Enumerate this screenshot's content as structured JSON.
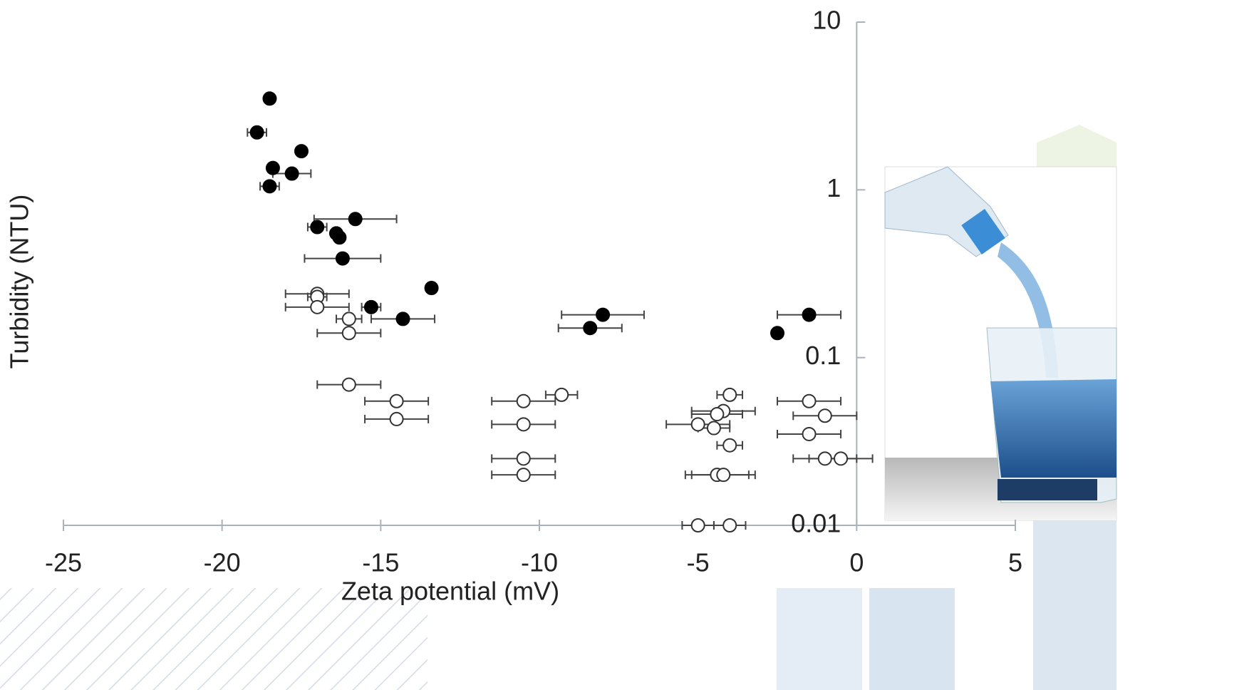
{
  "chart_data": {
    "type": "scatter",
    "x_label": "Zeta potential (mV)",
    "y_label": "Turbidity (NTU)",
    "xlim": [
      -25,
      5
    ],
    "xticks": [
      -25,
      -20,
      -15,
      -10,
      -5,
      0,
      5
    ],
    "ylim": [
      0.01,
      10
    ],
    "yticks": [
      0.01,
      0.1,
      1,
      10
    ],
    "y_log": true,
    "series": [
      {
        "color": "#000000",
        "fill": "#000000",
        "x": [
          -18.5,
          -18.9,
          -17.5,
          -18.4,
          -17.8,
          -18.5,
          -15.8,
          -17.0,
          -16.4,
          -16.3,
          -16.2,
          -13.4,
          -15.3,
          -14.3,
          -8.0,
          -8.4,
          -1.5,
          -2.5
        ],
        "values": [
          3.5,
          2.2,
          1.7,
          1.35,
          1.25,
          1.05,
          0.67,
          0.6,
          0.55,
          0.52,
          0.39,
          0.26,
          0.2,
          0.17,
          0.18,
          0.15,
          0.18,
          0.14
        ],
        "xerr": [
          0.1,
          0.3,
          0.1,
          0.1,
          0.6,
          0.3,
          1.3,
          0.3,
          0.1,
          0.1,
          1.2,
          0.1,
          0.3,
          1.0,
          1.3,
          1.0,
          1.0,
          0.1
        ]
      },
      {
        "color": "#333333",
        "fill": "#ffffff",
        "x": [
          -17.0,
          -17.0,
          -17.0,
          -16.0,
          -16.0,
          -16.0,
          -14.5,
          -14.5,
          -9.3,
          -10.5,
          -10.5,
          -10.5,
          -10.5,
          -4.0,
          -4.2,
          -4.4,
          -5.0,
          -4.5,
          -4.0,
          -4.4,
          -4.2,
          -1.5,
          -1.0,
          -1.5,
          -1.0,
          -0.5,
          -5.0,
          -4.0
        ],
        "values": [
          0.24,
          0.23,
          0.2,
          0.17,
          0.14,
          0.069,
          0.055,
          0.043,
          0.06,
          0.055,
          0.04,
          0.025,
          0.02,
          0.06,
          0.048,
          0.046,
          0.04,
          0.038,
          0.03,
          0.02,
          0.02,
          0.055,
          0.045,
          0.035,
          0.025,
          0.025,
          0.01,
          0.01
        ],
        "xerr": [
          1.0,
          0.3,
          1.0,
          0.4,
          1.0,
          1.0,
          1.0,
          1.0,
          0.5,
          1.0,
          1.0,
          1.0,
          1.0,
          0.4,
          1.0,
          0.8,
          1.0,
          0.5,
          0.4,
          1.0,
          1.0,
          1.0,
          1.0,
          1.0,
          1.0,
          1.0,
          0.5,
          0.5
        ]
      }
    ]
  }
}
